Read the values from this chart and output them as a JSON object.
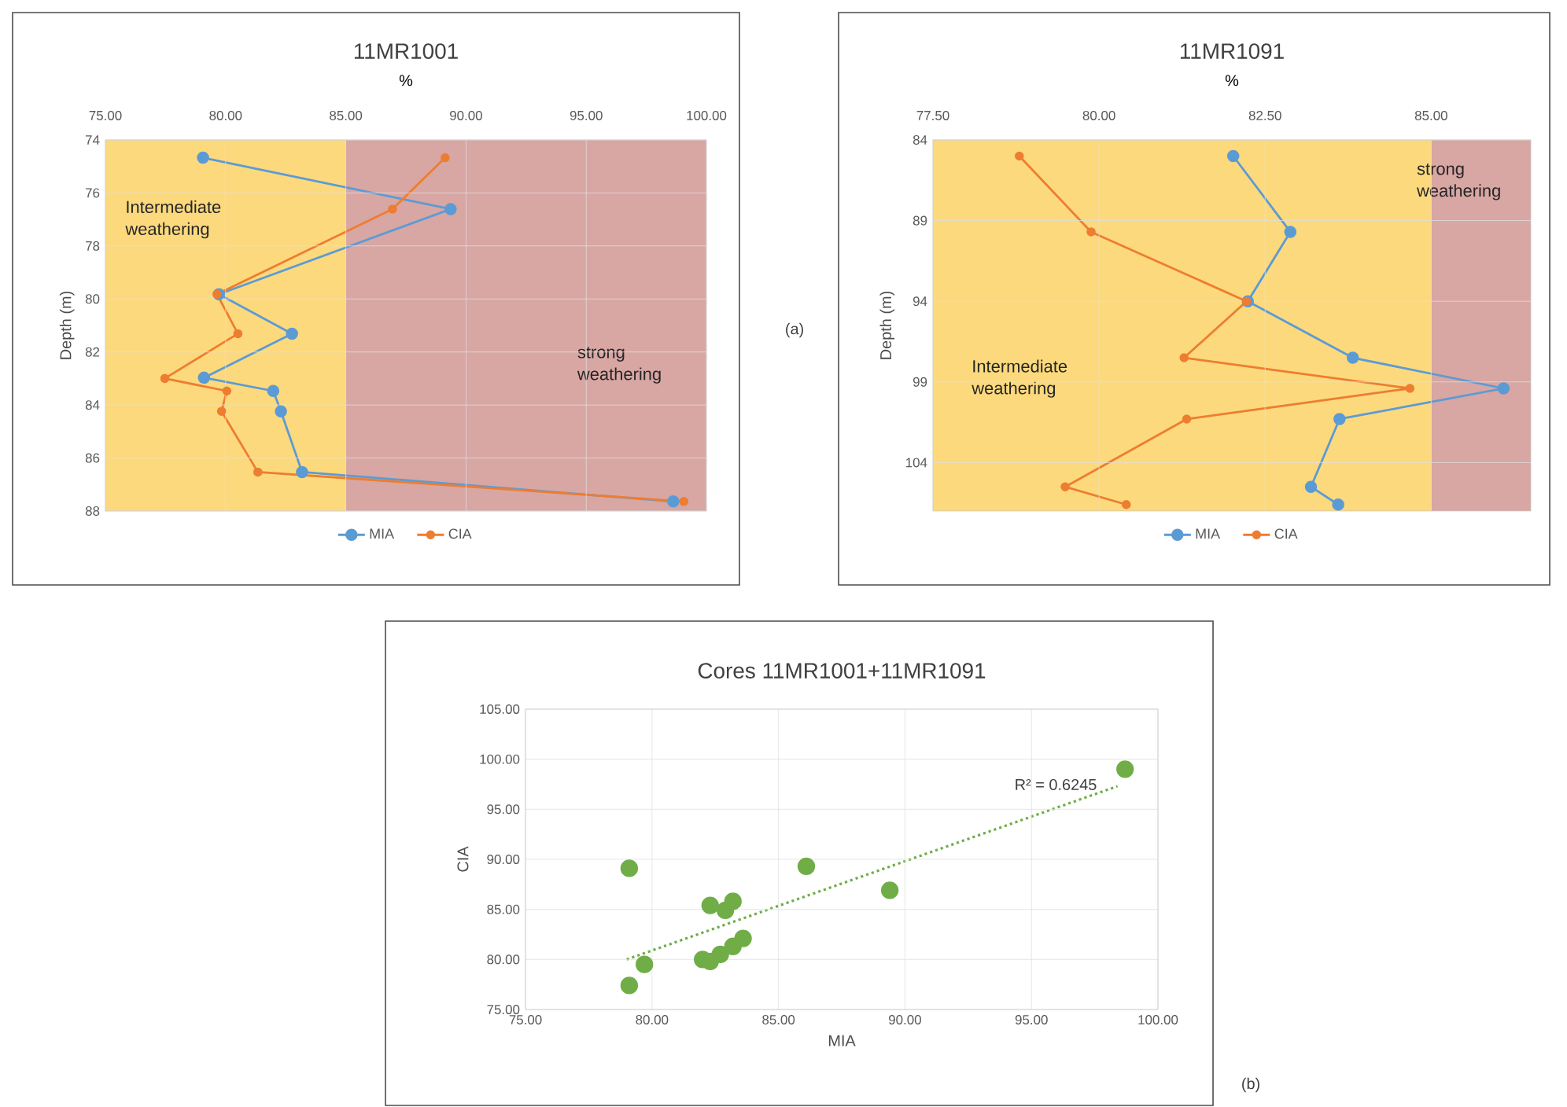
{
  "chart_data": [
    {
      "type": "line",
      "title": "11MR1001",
      "xlabel": "%",
      "ylabel": "Depth (m)",
      "marker": "circle",
      "grid": true,
      "legend": "bottom",
      "xlim": [
        75,
        100
      ],
      "xticks": [
        {
          "value": 75,
          "label": "75.00"
        },
        {
          "value": 80,
          "label": "80.00"
        },
        {
          "value": 85,
          "label": "85.00"
        },
        {
          "value": 90,
          "label": "90.00"
        },
        {
          "value": 95,
          "label": "95.00"
        },
        {
          "value": 100,
          "label": "100.00"
        }
      ],
      "ylim": [
        88,
        74
      ],
      "yticks": [
        74,
        76,
        78,
        80,
        82,
        84,
        86,
        88
      ],
      "bands": [
        {
          "axis": "x",
          "from": 75,
          "to": 85,
          "label": "Intermediate weathering",
          "color": "#fcd97c"
        },
        {
          "axis": "x",
          "from": 85,
          "to": 100,
          "label": "strong weathering",
          "color": "#d8a6a3"
        }
      ],
      "series": [
        {
          "name": "MIA",
          "color": "#5b9bd5",
          "x": [
            79.06,
            89.36,
            79.72,
            82.76,
            79.1,
            81.98,
            82.3,
            83.18,
            98.62
          ],
          "values": [
            74.67,
            76.61,
            79.82,
            81.31,
            82.97,
            83.47,
            84.24,
            86.53,
            87.64
          ]
        },
        {
          "name": "CIA",
          "color": "#ed7d31",
          "x": [
            89.13,
            86.94,
            79.64,
            80.51,
            77.47,
            80.05,
            79.83,
            81.34,
            99.06
          ],
          "values": [
            74.67,
            76.61,
            79.82,
            81.31,
            83.0,
            83.47,
            84.24,
            86.53,
            87.64
          ]
        }
      ],
      "annotations": [
        "(a)"
      ]
    },
    {
      "type": "line",
      "title": "11MR1091",
      "xlabel": "%",
      "ylabel": "Depth (m)",
      "marker": "circle",
      "grid": true,
      "legend": "bottom",
      "xlim": [
        77.5,
        86.5
      ],
      "xticks": [
        {
          "value": 77.5,
          "label": "77.50"
        },
        {
          "value": 80,
          "label": "80.00"
        },
        {
          "value": 82.5,
          "label": "82.50"
        },
        {
          "value": 85,
          "label": "85.00"
        }
      ],
      "ylim": [
        107,
        84
      ],
      "yticks": [
        84,
        89,
        94,
        99,
        104
      ],
      "bands": [
        {
          "axis": "x",
          "from": 77.5,
          "to": 85,
          "label": "Intermediate weathering",
          "color": "#fcd97c"
        },
        {
          "axis": "x",
          "from": 85,
          "to": 86.5,
          "label": "strong weathering",
          "color": "#d8a6a3"
        }
      ],
      "series": [
        {
          "name": "MIA",
          "color": "#5b9bd5",
          "x": [
            82.02,
            82.88,
            82.24,
            83.82,
            86.09,
            83.62,
            83.19,
            83.6
          ],
          "values": [
            85.0,
            89.7,
            94.0,
            97.5,
            99.4,
            101.3,
            105.5,
            106.6
          ]
        },
        {
          "name": "CIA",
          "color": "#ed7d31",
          "x": [
            78.8,
            79.88,
            82.22,
            81.28,
            84.68,
            81.32,
            79.49,
            80.41
          ],
          "values": [
            85.0,
            89.7,
            94.0,
            97.5,
            99.4,
            101.3,
            105.5,
            106.6
          ]
        }
      ]
    },
    {
      "type": "scatter",
      "title": "Cores 11MR1001+11MR1091",
      "xlabel": "MIA",
      "ylabel": "CIA",
      "marker": "circle",
      "grid": true,
      "xlim": [
        75,
        100
      ],
      "xticks": [
        {
          "value": 75,
          "label": "75.00"
        },
        {
          "value": 80,
          "label": "80.00"
        },
        {
          "value": 85,
          "label": "85.00"
        },
        {
          "value": 90,
          "label": "90.00"
        },
        {
          "value": 95,
          "label": "95.00"
        },
        {
          "value": 100,
          "label": "100.00"
        }
      ],
      "ylim": [
        75,
        105
      ],
      "yticks": [
        {
          "value": 75,
          "label": "75.00"
        },
        {
          "value": 80,
          "label": "80.00"
        },
        {
          "value": 85,
          "label": "85.00"
        },
        {
          "value": 90,
          "label": "90.00"
        },
        {
          "value": 95,
          "label": "95.00"
        },
        {
          "value": 100,
          "label": "100.00"
        },
        {
          "value": 105,
          "label": "105.00"
        }
      ],
      "series": [
        {
          "color": "#70ad47",
          "x": [
            79.1,
            86.1,
            89.4,
            98.7,
            82.3,
            82.9,
            83.2,
            79.1,
            79.7,
            82.0,
            82.3,
            82.7,
            83.2,
            83.6
          ],
          "values": [
            89.1,
            89.3,
            86.9,
            99.0,
            85.4,
            84.9,
            85.8,
            77.4,
            79.5,
            80.0,
            79.8,
            80.5,
            81.3,
            82.1
          ]
        },
        {
          "type": "line",
          "line_style": "dotted",
          "marker": "none",
          "color": "#70ad47",
          "x": [
            79.0,
            98.4
          ],
          "values": [
            80.0,
            97.3
          ]
        }
      ],
      "annotations": [
        "R² = 0.6245",
        "(b)"
      ]
    }
  ]
}
